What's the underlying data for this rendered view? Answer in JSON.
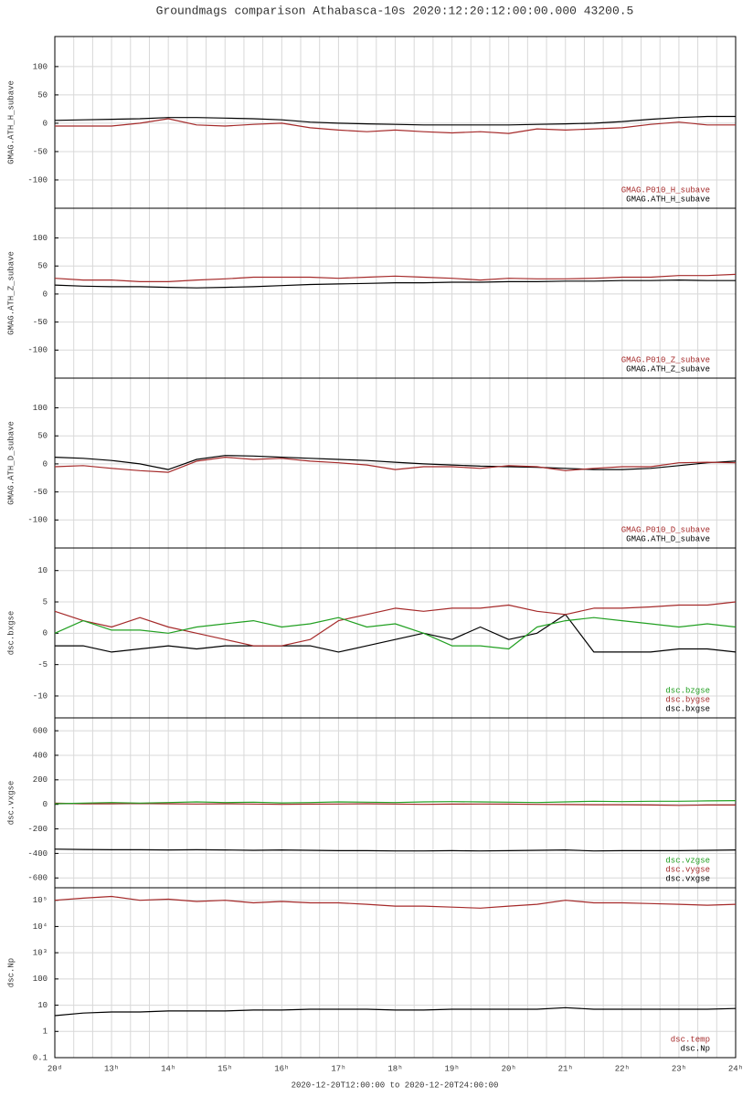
{
  "title": "Groundmags comparison Athabasca-10s 2020:12:20:12:00:00.000 43200.5",
  "chart_data": [
    {
      "type": "line",
      "ylabel": "GMAG.ATH_H_subave",
      "grid": true,
      "x": [
        12,
        12.5,
        13,
        13.5,
        14,
        14.5,
        15,
        15.5,
        16,
        16.5,
        17,
        17.5,
        18,
        18.5,
        19,
        19.5,
        20,
        20.5,
        21,
        21.5,
        22,
        22.5,
        23,
        23.5,
        24
      ],
      "xlim": [
        12,
        24
      ],
      "xticks": [
        12,
        13,
        14,
        15,
        16,
        17,
        18,
        19,
        20,
        21,
        22,
        23,
        24
      ],
      "ylim": [
        -150,
        153
      ],
      "yticks": [
        100,
        50,
        0,
        -50,
        -100
      ],
      "series": [
        {
          "name": "GMAG.ATH_H_subave",
          "color": "#000000",
          "values": [
            5,
            6,
            7,
            8,
            10,
            10,
            9,
            8,
            6,
            2,
            0,
            -1,
            -2,
            -3,
            -3,
            -3,
            -3,
            -2,
            -1,
            0,
            3,
            7,
            10,
            12,
            12
          ]
        },
        {
          "name": "GMAG.P010_H_subave",
          "color": "#a52a2a",
          "values": [
            -5,
            -5,
            -5,
            0,
            8,
            -3,
            -5,
            -2,
            0,
            -8,
            -12,
            -15,
            -12,
            -15,
            -17,
            -15,
            -18,
            -10,
            -12,
            -10,
            -8,
            -2,
            2,
            -3,
            -3
          ]
        }
      ]
    },
    {
      "type": "line",
      "ylabel": "GMAG.ATH_Z_subave",
      "grid": true,
      "x": [
        12,
        12.5,
        13,
        13.5,
        14,
        14.5,
        15,
        15.5,
        16,
        16.5,
        17,
        17.5,
        18,
        18.5,
        19,
        19.5,
        20,
        20.5,
        21,
        21.5,
        22,
        22.5,
        23,
        23.5,
        24
      ],
      "xlim": [
        12,
        24
      ],
      "xticks": [
        12,
        13,
        14,
        15,
        16,
        17,
        18,
        19,
        20,
        21,
        22,
        23,
        24
      ],
      "ylim": [
        -150,
        153
      ],
      "yticks": [
        100,
        50,
        0,
        -50,
        -100
      ],
      "series": [
        {
          "name": "GMAG.ATH_Z_subave",
          "color": "#000000",
          "values": [
            16,
            14,
            13,
            13,
            12,
            11,
            12,
            13,
            15,
            17,
            18,
            19,
            20,
            20,
            21,
            21,
            22,
            22,
            23,
            23,
            24,
            24,
            25,
            24,
            24
          ]
        },
        {
          "name": "GMAG.P010_Z_subave",
          "color": "#a52a2a",
          "values": [
            28,
            25,
            25,
            22,
            22,
            25,
            27,
            30,
            30,
            30,
            28,
            30,
            32,
            30,
            28,
            25,
            28,
            27,
            27,
            28,
            30,
            30,
            33,
            33,
            35
          ]
        }
      ]
    },
    {
      "type": "line",
      "ylabel": "GMAG.ATH_D_subave",
      "grid": true,
      "x": [
        12,
        12.5,
        13,
        13.5,
        14,
        14.5,
        15,
        15.5,
        16,
        16.5,
        17,
        17.5,
        18,
        18.5,
        19,
        19.5,
        20,
        20.5,
        21,
        21.5,
        22,
        22.5,
        23,
        23.5,
        24
      ],
      "xlim": [
        12,
        24
      ],
      "xticks": [
        12,
        13,
        14,
        15,
        16,
        17,
        18,
        19,
        20,
        21,
        22,
        23,
        24
      ],
      "ylim": [
        -150,
        153
      ],
      "yticks": [
        100,
        50,
        0,
        -50,
        -100
      ],
      "series": [
        {
          "name": "GMAG.ATH_D_subave",
          "color": "#000000",
          "values": [
            12,
            10,
            6,
            0,
            -10,
            8,
            15,
            14,
            12,
            10,
            8,
            6,
            3,
            0,
            -2,
            -4,
            -5,
            -6,
            -8,
            -10,
            -10,
            -8,
            -3,
            2,
            5
          ]
        },
        {
          "name": "GMAG.P010_D_subave",
          "color": "#a52a2a",
          "values": [
            -5,
            -3,
            -8,
            -12,
            -15,
            5,
            12,
            8,
            10,
            5,
            2,
            -2,
            -10,
            -5,
            -5,
            -8,
            -3,
            -5,
            -12,
            -8,
            -5,
            -5,
            2,
            3,
            2
          ]
        }
      ]
    },
    {
      "type": "line",
      "ylabel": "dsc.bxgse",
      "grid": true,
      "x": [
        12,
        12.5,
        13,
        13.5,
        14,
        14.5,
        15,
        15.5,
        16,
        16.5,
        17,
        17.5,
        18,
        18.5,
        19,
        19.5,
        20,
        20.5,
        21,
        21.5,
        22,
        22.5,
        23,
        23.5,
        24
      ],
      "xlim": [
        12,
        24
      ],
      "xticks": [
        12,
        13,
        14,
        15,
        16,
        17,
        18,
        19,
        20,
        21,
        22,
        23,
        24
      ],
      "ylim": [
        -13.5,
        13.6
      ],
      "yticks": [
        10,
        5,
        0,
        -5,
        -10
      ],
      "series": [
        {
          "name": "dsc.bxgse",
          "color": "#000000",
          "values": [
            -2,
            -2,
            -3,
            -2.5,
            -2,
            -2.5,
            -2,
            -2,
            -2,
            -2,
            -3,
            -2,
            -1,
            0,
            -1,
            1,
            -1,
            0,
            3,
            -3,
            -3,
            -3,
            -2.5,
            -2.5,
            -3
          ]
        },
        {
          "name": "dsc.bygse",
          "color": "#a52a2a",
          "values": [
            3.5,
            2,
            1,
            2.5,
            1,
            0,
            -1,
            -2,
            -2,
            -1,
            2,
            3,
            4,
            3.5,
            4,
            4,
            4.5,
            3.5,
            3,
            4,
            4,
            4.2,
            4.5,
            4.5,
            5
          ]
        },
        {
          "name": "dsc.bzgse",
          "color": "#22a022",
          "values": [
            0,
            2,
            0.5,
            0.5,
            0,
            1,
            1.5,
            2,
            1,
            1.5,
            2.5,
            1,
            1.5,
            0,
            -2,
            -2,
            -2.5,
            1,
            2,
            2.5,
            2,
            1.5,
            1,
            1.5,
            1
          ]
        }
      ]
    },
    {
      "type": "line",
      "ylabel": "dsc.vxgse",
      "grid": true,
      "x": [
        12,
        12.5,
        13,
        13.5,
        14,
        14.5,
        15,
        15.5,
        16,
        16.5,
        17,
        17.5,
        18,
        18.5,
        19,
        19.5,
        20,
        20.5,
        21,
        21.5,
        22,
        22.5,
        23,
        23.5,
        24
      ],
      "xlim": [
        12,
        24
      ],
      "xticks": [
        12,
        13,
        14,
        15,
        16,
        17,
        18,
        19,
        20,
        21,
        22,
        23,
        24
      ],
      "ylim": [
        -680,
        705
      ],
      "yticks": [
        600,
        400,
        200,
        0,
        -200,
        -400,
        -600
      ],
      "series": [
        {
          "name": "dsc.vxgse",
          "color": "#000000",
          "values": [
            -365,
            -368,
            -370,
            -370,
            -372,
            -370,
            -372,
            -375,
            -372,
            -375,
            -378,
            -378,
            -380,
            -380,
            -378,
            -380,
            -378,
            -375,
            -372,
            -380,
            -378,
            -378,
            -378,
            -375,
            -372
          ]
        },
        {
          "name": "dsc.vygse",
          "color": "#a52a2a",
          "values": [
            10,
            5,
            5,
            8,
            5,
            3,
            5,
            3,
            0,
            2,
            3,
            5,
            3,
            0,
            2,
            3,
            2,
            0,
            -2,
            -3,
            -3,
            -5,
            -8,
            -5,
            -5
          ]
        },
        {
          "name": "dsc.vzgse",
          "color": "#22a022",
          "values": [
            5,
            10,
            15,
            10,
            15,
            20,
            15,
            18,
            12,
            15,
            20,
            18,
            15,
            20,
            22,
            20,
            18,
            15,
            20,
            25,
            22,
            25,
            25,
            28,
            30
          ]
        }
      ]
    },
    {
      "type": "line",
      "ylabel": "dsc.Np",
      "grid": true,
      "log": true,
      "xlabel": "2020-12-20T12:00:00 to 2020-12-20T24:00:00",
      "x": [
        12,
        12.5,
        13,
        13.5,
        14,
        14.5,
        15,
        15.5,
        16,
        16.5,
        17,
        17.5,
        18,
        18.5,
        19,
        19.5,
        20,
        20.5,
        21,
        21.5,
        22,
        22.5,
        23,
        23.5,
        24
      ],
      "xlim": [
        12,
        24
      ],
      "xticks": [
        {
          "value": 12,
          "label": "20ᵈ"
        },
        {
          "value": 13,
          "label": "13ʰ"
        },
        {
          "value": 14,
          "label": "14ʰ"
        },
        {
          "value": 15,
          "label": "15ʰ"
        },
        {
          "value": 16,
          "label": "16ʰ"
        },
        {
          "value": 17,
          "label": "17ʰ"
        },
        {
          "value": 18,
          "label": "18ʰ"
        },
        {
          "value": 19,
          "label": "19ʰ"
        },
        {
          "value": 20,
          "label": "20ʰ"
        },
        {
          "value": 21,
          "label": "21ʰ"
        },
        {
          "value": 22,
          "label": "22ʰ"
        },
        {
          "value": 23,
          "label": "23ʰ"
        },
        {
          "value": 24,
          "label": "24ʰ"
        }
      ],
      "ylim": [
        0.1,
        300000
      ],
      "yticks": [
        {
          "value": 100000,
          "label": "10⁵"
        },
        {
          "value": 10000,
          "label": "10⁴"
        },
        {
          "value": 1000,
          "label": "10³"
        },
        100,
        10,
        1,
        0.1
      ],
      "series": [
        {
          "name": "dsc.Np",
          "color": "#000000",
          "values": [
            4,
            5,
            5.5,
            5.5,
            6,
            6,
            6,
            6.5,
            6.5,
            7,
            7,
            7,
            6.5,
            6.5,
            7,
            7,
            7,
            7,
            8,
            7,
            7,
            7,
            7,
            7,
            7.5
          ]
        },
        {
          "name": "dsc.temp",
          "color": "#a52a2a",
          "values": [
            100000,
            120000,
            140000,
            100000,
            110000,
            90000,
            100000,
            80000,
            90000,
            80000,
            80000,
            70000,
            60000,
            60000,
            55000,
            50000,
            60000,
            70000,
            100000,
            80000,
            80000,
            75000,
            70000,
            65000,
            70000
          ]
        }
      ]
    }
  ]
}
